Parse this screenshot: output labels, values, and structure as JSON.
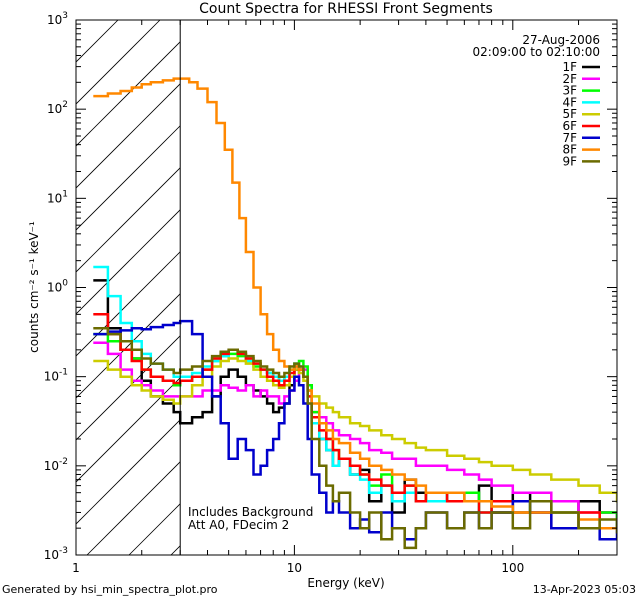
{
  "chart_data": {
    "type": "line",
    "title": "Count Spectra for RHESSI Front Segments",
    "xlabel": "Energy (keV)",
    "ylabel": "counts cm⁻² s⁻¹ keV⁻¹",
    "xscale": "log",
    "yscale": "log",
    "xlim": [
      1,
      300
    ],
    "ylim": [
      0.001,
      1000
    ],
    "x_tick_labels": [
      "1",
      "10",
      "100"
    ],
    "y_tick_labels": [
      "10⁻³",
      "10⁻²",
      "10⁻¹",
      "10⁰",
      "10¹",
      "10²",
      "10³"
    ],
    "date": "27-Aug-2006",
    "time_range": "02:09:00 to 02:10:00",
    "annotations": [
      "Includes Background",
      "Att A0, FDecim 2"
    ],
    "excluded_region_keV": [
      1,
      3
    ],
    "legend_position": "top-right",
    "series": [
      {
        "name": "1F",
        "color": "#000000",
        "x": [
          1.2,
          1.4,
          1.6,
          1.8,
          2.0,
          2.2,
          2.5,
          2.8,
          3.0,
          3.4,
          3.8,
          4.2,
          4.6,
          5.0,
          5.5,
          6.0,
          6.5,
          7.0,
          7.5,
          8.0,
          8.5,
          9.0,
          9.5,
          10.0,
          10.5,
          11.0,
          11.5,
          12.0,
          13,
          14,
          15,
          16,
          18,
          20,
          22,
          25,
          28,
          32,
          36,
          40,
          50,
          60,
          70,
          80,
          100,
          120,
          150,
          200,
          250,
          300
        ],
        "y": [
          1.2,
          0.35,
          0.2,
          0.16,
          0.09,
          0.06,
          0.05,
          0.04,
          0.03,
          0.035,
          0.04,
          0.06,
          0.1,
          0.12,
          0.1,
          0.08,
          0.07,
          0.06,
          0.05,
          0.04,
          0.045,
          0.05,
          0.08,
          0.12,
          0.12,
          0.1,
          0.08,
          0.03,
          0.02,
          0.015,
          0.01,
          0.012,
          0.008,
          0.009,
          0.004,
          0.006,
          0.003,
          0.007,
          0.005,
          0.004,
          0.005,
          0.004,
          0.006,
          0.003,
          0.005,
          0.004,
          0.003,
          0.004,
          0.003,
          0.002
        ]
      },
      {
        "name": "2F",
        "color": "#ff00ff",
        "x": [
          1.2,
          1.4,
          1.6,
          1.8,
          2.0,
          2.2,
          2.5,
          2.8,
          3.0,
          3.4,
          3.8,
          4.2,
          4.6,
          5.0,
          5.5,
          6.0,
          6.5,
          7.0,
          7.5,
          8.0,
          8.5,
          9.0,
          9.5,
          10.0,
          10.5,
          11.0,
          11.5,
          12.0,
          13,
          14,
          15,
          16,
          18,
          20,
          22,
          25,
          28,
          32,
          36,
          40,
          50,
          60,
          70,
          80,
          100,
          120,
          150,
          200,
          250,
          300
        ],
        "y": [
          0.24,
          0.18,
          0.12,
          0.09,
          0.08,
          0.07,
          0.06,
          0.06,
          0.06,
          0.06,
          0.07,
          0.07,
          0.08,
          0.075,
          0.07,
          0.08,
          0.06,
          0.07,
          0.06,
          0.06,
          0.05,
          0.06,
          0.07,
          0.09,
          0.12,
          0.12,
          0.07,
          0.04,
          0.035,
          0.03,
          0.025,
          0.022,
          0.02,
          0.018,
          0.015,
          0.014,
          0.012,
          0.012,
          0.01,
          0.01,
          0.009,
          0.008,
          0.007,
          0.006,
          0.005,
          0.005,
          0.004,
          0.003,
          0.003,
          0.002
        ]
      },
      {
        "name": "3F",
        "color": "#00ff00",
        "x": [
          1.2,
          1.4,
          1.6,
          1.8,
          2.0,
          2.2,
          2.5,
          2.8,
          3.0,
          3.4,
          3.8,
          4.2,
          4.6,
          5.0,
          5.5,
          6.0,
          6.5,
          7.0,
          7.5,
          8.0,
          8.5,
          9.0,
          9.5,
          10.0,
          10.5,
          11.0,
          11.5,
          12.0,
          13,
          14,
          15,
          16,
          18,
          20,
          22,
          25,
          28,
          32,
          36,
          40,
          50,
          60,
          70,
          80,
          100,
          120,
          150,
          200,
          250,
          300
        ],
        "y": [
          0.3,
          0.25,
          0.2,
          0.16,
          0.12,
          0.1,
          0.09,
          0.08,
          0.09,
          0.1,
          0.12,
          0.15,
          0.17,
          0.18,
          0.17,
          0.15,
          0.13,
          0.12,
          0.11,
          0.1,
          0.09,
          0.1,
          0.12,
          0.14,
          0.15,
          0.13,
          0.08,
          0.04,
          0.03,
          0.02,
          0.015,
          0.012,
          0.01,
          0.008,
          0.006,
          0.008,
          0.005,
          0.006,
          0.004,
          0.005,
          0.004,
          0.005,
          0.003,
          0.004,
          0.003,
          0.004,
          0.003,
          0.002,
          0.003,
          0.002
        ]
      },
      {
        "name": "4F",
        "color": "#00ffff",
        "x": [
          1.2,
          1.4,
          1.6,
          1.8,
          2.0,
          2.2,
          2.5,
          2.8,
          3.0,
          3.4,
          3.8,
          4.2,
          4.6,
          5.0,
          5.5,
          6.0,
          6.5,
          7.0,
          7.5,
          8.0,
          8.5,
          9.0,
          9.5,
          10.0,
          10.5,
          11.0,
          11.5,
          12.0,
          13,
          14,
          15,
          16,
          18,
          20,
          22,
          25,
          28,
          32,
          36,
          40,
          50,
          60,
          70,
          80,
          100,
          120,
          150,
          200,
          250,
          300
        ],
        "y": [
          1.7,
          0.8,
          0.4,
          0.25,
          0.18,
          0.14,
          0.12,
          0.1,
          0.1,
          0.11,
          0.13,
          0.15,
          0.17,
          0.2,
          0.18,
          0.15,
          0.14,
          0.12,
          0.11,
          0.1,
          0.09,
          0.1,
          0.12,
          0.14,
          0.13,
          0.1,
          0.06,
          0.03,
          0.02,
          0.015,
          0.01,
          0.012,
          0.008,
          0.007,
          0.005,
          0.006,
          0.004,
          0.005,
          0.004,
          0.004,
          0.005,
          0.004,
          0.003,
          0.004,
          0.003,
          0.003,
          0.003,
          0.002,
          0.002,
          0.002
        ]
      },
      {
        "name": "5F",
        "color": "#cccc00",
        "x": [
          1.2,
          1.4,
          1.6,
          1.8,
          2.0,
          2.2,
          2.5,
          2.8,
          3.0,
          3.4,
          3.8,
          4.2,
          4.6,
          5.0,
          5.5,
          6.0,
          6.5,
          7.0,
          7.5,
          8.0,
          8.5,
          9.0,
          9.5,
          10.0,
          10.5,
          11.0,
          11.5,
          12.0,
          13,
          14,
          15,
          16,
          18,
          20,
          22,
          25,
          28,
          32,
          36,
          40,
          50,
          60,
          70,
          80,
          100,
          120,
          150,
          200,
          250,
          300
        ],
        "y": [
          0.15,
          0.12,
          0.1,
          0.08,
          0.07,
          0.06,
          0.055,
          0.05,
          0.06,
          0.08,
          0.1,
          0.13,
          0.15,
          0.16,
          0.15,
          0.14,
          0.12,
          0.1,
          0.09,
          0.08,
          0.075,
          0.08,
          0.1,
          0.12,
          0.11,
          0.09,
          0.07,
          0.06,
          0.05,
          0.045,
          0.04,
          0.035,
          0.03,
          0.028,
          0.025,
          0.022,
          0.02,
          0.018,
          0.016,
          0.015,
          0.013,
          0.012,
          0.011,
          0.01,
          0.009,
          0.008,
          0.007,
          0.006,
          0.005,
          0.004
        ]
      },
      {
        "name": "6F",
        "color": "#ff0000",
        "x": [
          1.2,
          1.4,
          1.6,
          1.8,
          2.0,
          2.2,
          2.5,
          2.8,
          3.0,
          3.4,
          3.8,
          4.2,
          4.6,
          5.0,
          5.5,
          6.0,
          6.5,
          7.0,
          7.5,
          8.0,
          8.5,
          9.0,
          9.5,
          10.0,
          10.5,
          11.0,
          11.5,
          12.0,
          13,
          14,
          15,
          16,
          18,
          20,
          22,
          25,
          28,
          32,
          36,
          40,
          50,
          60,
          70,
          80,
          100,
          120,
          150,
          200,
          250,
          300
        ],
        "y": [
          0.5,
          0.3,
          0.2,
          0.15,
          0.12,
          0.1,
          0.09,
          0.085,
          0.09,
          0.1,
          0.12,
          0.16,
          0.18,
          0.2,
          0.18,
          0.16,
          0.14,
          0.12,
          0.1,
          0.09,
          0.08,
          0.09,
          0.11,
          0.13,
          0.12,
          0.1,
          0.06,
          0.035,
          0.025,
          0.02,
          0.015,
          0.012,
          0.01,
          0.008,
          0.007,
          0.006,
          0.005,
          0.006,
          0.004,
          0.005,
          0.004,
          0.004,
          0.003,
          0.004,
          0.003,
          0.003,
          0.002,
          0.003,
          0.002,
          0.002
        ]
      },
      {
        "name": "7F",
        "color": "#0000cc",
        "x": [
          1.2,
          1.4,
          1.6,
          1.8,
          2.0,
          2.2,
          2.5,
          2.8,
          3.0,
          3.4,
          3.8,
          4.2,
          4.6,
          5.0,
          5.5,
          6.0,
          6.5,
          7.0,
          7.5,
          8.0,
          8.5,
          9.0,
          9.5,
          10.0,
          10.5,
          11.0,
          11.5,
          12.0,
          13,
          14,
          15,
          16,
          18,
          20,
          22,
          25,
          28,
          32,
          36,
          40,
          50,
          60,
          70,
          80,
          100,
          120,
          150,
          200,
          250,
          300
        ],
        "y": [
          0.3,
          0.32,
          0.33,
          0.35,
          0.34,
          0.36,
          0.38,
          0.4,
          0.42,
          0.3,
          0.1,
          0.06,
          0.03,
          0.012,
          0.02,
          0.015,
          0.008,
          0.01,
          0.015,
          0.02,
          0.03,
          0.05,
          0.07,
          0.1,
          0.08,
          0.05,
          0.02,
          0.008,
          0.005,
          0.003,
          0.004,
          0.003,
          0.002,
          0.0025,
          0.0018,
          0.003,
          0.002,
          0.0015,
          0.002,
          0.003,
          0.002,
          0.003,
          0.002,
          0.003,
          0.004,
          0.003,
          0.002,
          0.002,
          0.0015,
          0.002
        ]
      },
      {
        "name": "8F",
        "color": "#ff8800",
        "x": [
          1.2,
          1.4,
          1.6,
          1.8,
          2.0,
          2.2,
          2.5,
          2.8,
          3.0,
          3.3,
          3.6,
          4.0,
          4.4,
          4.8,
          5.2,
          5.6,
          6.0,
          6.5,
          7.0,
          7.5,
          8.0,
          8.5,
          9.0,
          9.5,
          10.0,
          10.5,
          11.0,
          11.5,
          12.0,
          13,
          14,
          15,
          16,
          18,
          20,
          22,
          25,
          28,
          32,
          36,
          40,
          50,
          60,
          70,
          80,
          100,
          120,
          150,
          200,
          250,
          300
        ],
        "y": [
          140,
          150,
          160,
          175,
          190,
          200,
          210,
          220,
          220,
          200,
          170,
          120,
          70,
          35,
          15,
          6,
          2.5,
          1.0,
          0.5,
          0.3,
          0.2,
          0.15,
          0.13,
          0.12,
          0.13,
          0.12,
          0.1,
          0.07,
          0.05,
          0.03,
          0.025,
          0.02,
          0.018,
          0.014,
          0.012,
          0.01,
          0.009,
          0.008,
          0.007,
          0.006,
          0.005,
          0.005,
          0.004,
          0.004,
          0.0035,
          0.003,
          0.003,
          0.003,
          0.0025,
          0.002,
          0.002
        ]
      },
      {
        "name": "9F",
        "color": "#6b6b00",
        "x": [
          1.2,
          1.4,
          1.6,
          1.8,
          2.0,
          2.2,
          2.5,
          2.8,
          3.0,
          3.4,
          3.8,
          4.2,
          4.6,
          5.0,
          5.5,
          6.0,
          6.5,
          7.0,
          7.5,
          8.0,
          8.5,
          9.0,
          9.5,
          10.0,
          10.5,
          11.0,
          11.5,
          12.0,
          13,
          14,
          15,
          16,
          18,
          20,
          22,
          25,
          28,
          32,
          36,
          40,
          50,
          60,
          70,
          80,
          100,
          120,
          150,
          200,
          250,
          300
        ],
        "y": [
          0.35,
          0.3,
          0.25,
          0.2,
          0.16,
          0.14,
          0.12,
          0.11,
          0.12,
          0.13,
          0.15,
          0.17,
          0.19,
          0.2,
          0.19,
          0.17,
          0.15,
          0.13,
          0.12,
          0.11,
          0.1,
          0.11,
          0.13,
          0.14,
          0.13,
          0.1,
          0.05,
          0.02,
          0.01,
          0.006,
          0.004,
          0.005,
          0.003,
          0.002,
          0.003,
          0.0015,
          0.002,
          0.0012,
          0.002,
          0.003,
          0.002,
          0.003,
          0.002,
          0.003,
          0.002,
          0.004,
          0.003,
          0.002,
          0.0025,
          0.0018
        ]
      }
    ]
  },
  "footer": {
    "generated_by": "Generated by hsi_min_spectra_plot.pro",
    "timestamp": "13-Apr-2023 05:03"
  }
}
